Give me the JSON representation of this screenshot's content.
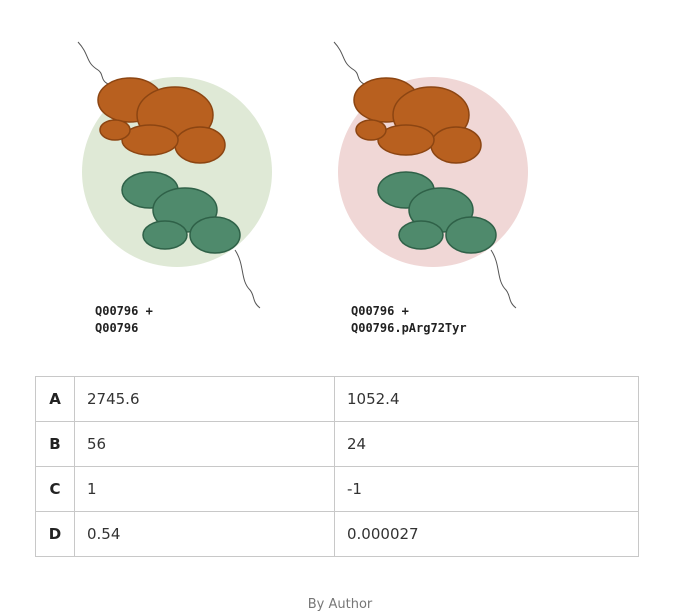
{
  "figures": [
    {
      "caption": [
        "Q00796 +",
        "Q00796"
      ]
    },
    {
      "caption": [
        "Q00796 +",
        "Q00796.pArg72Tyr"
      ]
    }
  ],
  "table": {
    "rows": [
      [
        "A",
        "2745.6",
        "1052.4"
      ],
      [
        "B",
        "56",
        "24"
      ],
      [
        "C",
        "1",
        "-1"
      ],
      [
        "D",
        "0.54",
        "0.000027"
      ]
    ]
  },
  "credit": "By Author"
}
